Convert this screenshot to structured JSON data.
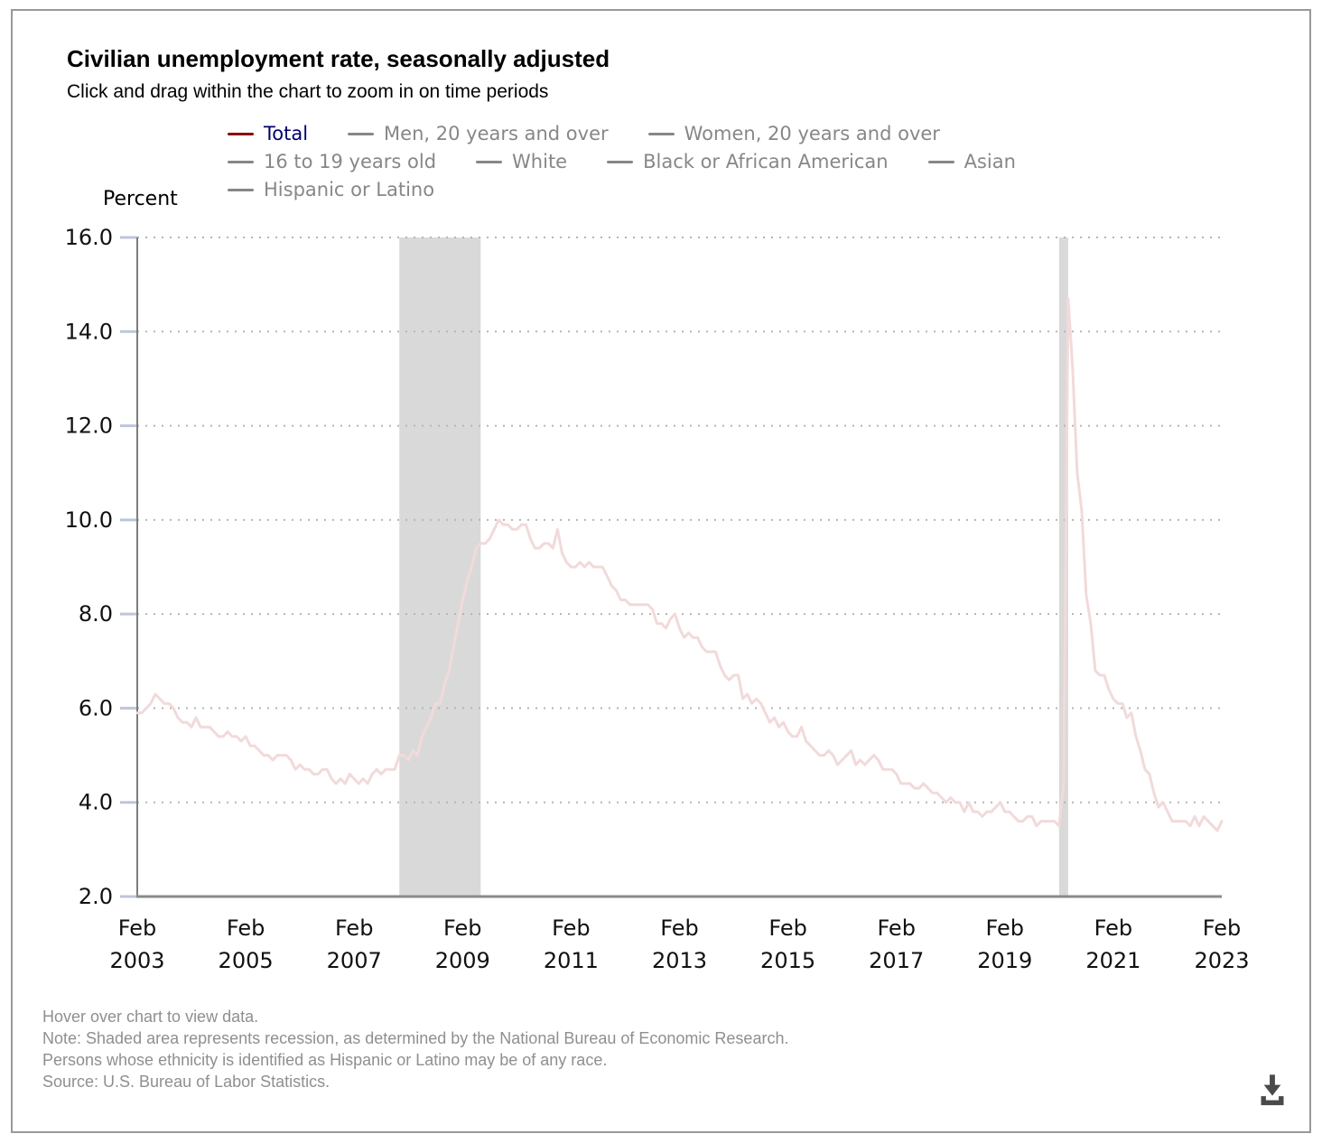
{
  "header": {
    "title": "Civilian unemployment rate, seasonally adjusted",
    "subtitle": "Click and drag within the chart to zoom in on time periods"
  },
  "legend": {
    "rows": [
      [
        {
          "label": "Total",
          "dash_color": "#8b0000",
          "text_color": "#00006e",
          "active": true
        },
        {
          "label": "Men, 20 years and over",
          "dash_color": "#878787",
          "text_color": "#878787",
          "active": false
        },
        {
          "label": "Women, 20 years and over",
          "dash_color": "#878787",
          "text_color": "#878787",
          "active": false
        }
      ],
      [
        {
          "label": "16 to 19 years old",
          "dash_color": "#878787",
          "text_color": "#878787",
          "active": false
        },
        {
          "label": "White",
          "dash_color": "#878787",
          "text_color": "#878787",
          "active": false
        },
        {
          "label": "Black or African American",
          "dash_color": "#878787",
          "text_color": "#878787",
          "active": false
        },
        {
          "label": "Asian",
          "dash_color": "#878787",
          "text_color": "#878787",
          "active": false
        }
      ],
      [
        {
          "label": "Hispanic or Latino",
          "dash_color": "#878787",
          "text_color": "#878787",
          "active": false
        }
      ]
    ]
  },
  "chart_data": {
    "type": "line",
    "title": "Civilian unemployment rate, seasonally adjusted",
    "ylabel": "Percent",
    "xlabel": "",
    "ylim": [
      2.0,
      16.0
    ],
    "y_tick_labels": [
      "16.0",
      "14.0",
      "12.0",
      "10.0",
      "8.0",
      "6.0",
      "4.0",
      "2.0"
    ],
    "grid": "dotted-horizontal",
    "legend_position": "top",
    "start": "2003-02",
    "frequency": "monthly",
    "x_tick_interval_months": 24,
    "x_ticks": [
      {
        "month": "Feb",
        "year": "2003"
      },
      {
        "month": "Feb",
        "year": "2005"
      },
      {
        "month": "Feb",
        "year": "2007"
      },
      {
        "month": "Feb",
        "year": "2009"
      },
      {
        "month": "Feb",
        "year": "2011"
      },
      {
        "month": "Feb",
        "year": "2013"
      },
      {
        "month": "Feb",
        "year": "2015"
      },
      {
        "month": "Feb",
        "year": "2017"
      },
      {
        "month": "Feb",
        "year": "2019"
      },
      {
        "month": "Feb",
        "year": "2021"
      },
      {
        "month": "Feb",
        "year": "2023"
      }
    ],
    "recession_color": "#d9d9d9",
    "recessions": [
      {
        "start": "2007-12",
        "end": "2009-06"
      },
      {
        "start": "2020-02",
        "end": "2020-04"
      }
    ],
    "series": [
      {
        "name": "Total",
        "color": "#f2dada",
        "values": [
          5.9,
          5.9,
          6.0,
          6.1,
          6.3,
          6.2,
          6.1,
          6.1,
          6.0,
          5.8,
          5.7,
          5.7,
          5.6,
          5.8,
          5.6,
          5.6,
          5.6,
          5.5,
          5.4,
          5.4,
          5.5,
          5.4,
          5.4,
          5.3,
          5.4,
          5.2,
          5.2,
          5.1,
          5.0,
          5.0,
          4.9,
          5.0,
          5.0,
          5.0,
          4.9,
          4.7,
          4.8,
          4.7,
          4.7,
          4.6,
          4.6,
          4.7,
          4.7,
          4.5,
          4.4,
          4.5,
          4.4,
          4.6,
          4.5,
          4.4,
          4.5,
          4.4,
          4.6,
          4.7,
          4.6,
          4.7,
          4.7,
          4.7,
          5.0,
          5.0,
          4.9,
          5.1,
          5.0,
          5.4,
          5.6,
          5.8,
          6.1,
          6.1,
          6.5,
          6.8,
          7.3,
          7.8,
          8.3,
          8.7,
          9.0,
          9.4,
          9.5,
          9.5,
          9.6,
          9.8,
          10.0,
          9.9,
          9.9,
          9.8,
          9.8,
          9.9,
          9.9,
          9.6,
          9.4,
          9.4,
          9.5,
          9.5,
          9.4,
          9.8,
          9.3,
          9.1,
          9.0,
          9.0,
          9.1,
          9.0,
          9.1,
          9.0,
          9.0,
          9.0,
          8.8,
          8.6,
          8.5,
          8.3,
          8.3,
          8.2,
          8.2,
          8.2,
          8.2,
          8.2,
          8.1,
          7.8,
          7.8,
          7.7,
          7.9,
          8.0,
          7.7,
          7.5,
          7.6,
          7.5,
          7.5,
          7.3,
          7.2,
          7.2,
          7.2,
          6.9,
          6.7,
          6.6,
          6.7,
          6.7,
          6.2,
          6.3,
          6.1,
          6.2,
          6.1,
          5.9,
          5.7,
          5.8,
          5.6,
          5.7,
          5.5,
          5.4,
          5.4,
          5.6,
          5.3,
          5.2,
          5.1,
          5.0,
          5.0,
          5.1,
          5.0,
          4.8,
          4.9,
          5.0,
          5.1,
          4.8,
          4.9,
          4.8,
          4.9,
          5.0,
          4.9,
          4.7,
          4.7,
          4.7,
          4.6,
          4.4,
          4.4,
          4.4,
          4.3,
          4.3,
          4.4,
          4.3,
          4.2,
          4.2,
          4.1,
          4.0,
          4.1,
          4.0,
          4.0,
          3.8,
          4.0,
          3.8,
          3.8,
          3.7,
          3.8,
          3.8,
          3.9,
          4.0,
          3.8,
          3.8,
          3.7,
          3.6,
          3.6,
          3.7,
          3.7,
          3.5,
          3.6,
          3.6,
          3.6,
          3.6,
          3.5,
          4.4,
          14.7,
          13.2,
          11.0,
          10.2,
          8.4,
          7.8,
          6.8,
          6.7,
          6.7,
          6.4,
          6.2,
          6.1,
          6.1,
          5.8,
          5.9,
          5.4,
          5.1,
          4.7,
          4.6,
          4.2,
          3.9,
          4.0,
          3.8,
          3.6,
          3.6,
          3.6,
          3.6,
          3.5,
          3.7,
          3.5,
          3.7,
          3.6,
          3.5,
          3.4,
          3.6
        ]
      }
    ]
  },
  "footer": {
    "lines": [
      "Hover over chart to view data.",
      "Note: Shaded area represents recession, as determined by the National Bureau of Economic Research.",
      "Persons whose ethnicity is identified as Hispanic or Latino may be of any race.",
      "Source: U.S. Bureau of Labor Statistics."
    ],
    "icons": {
      "download": "download-icon"
    }
  }
}
